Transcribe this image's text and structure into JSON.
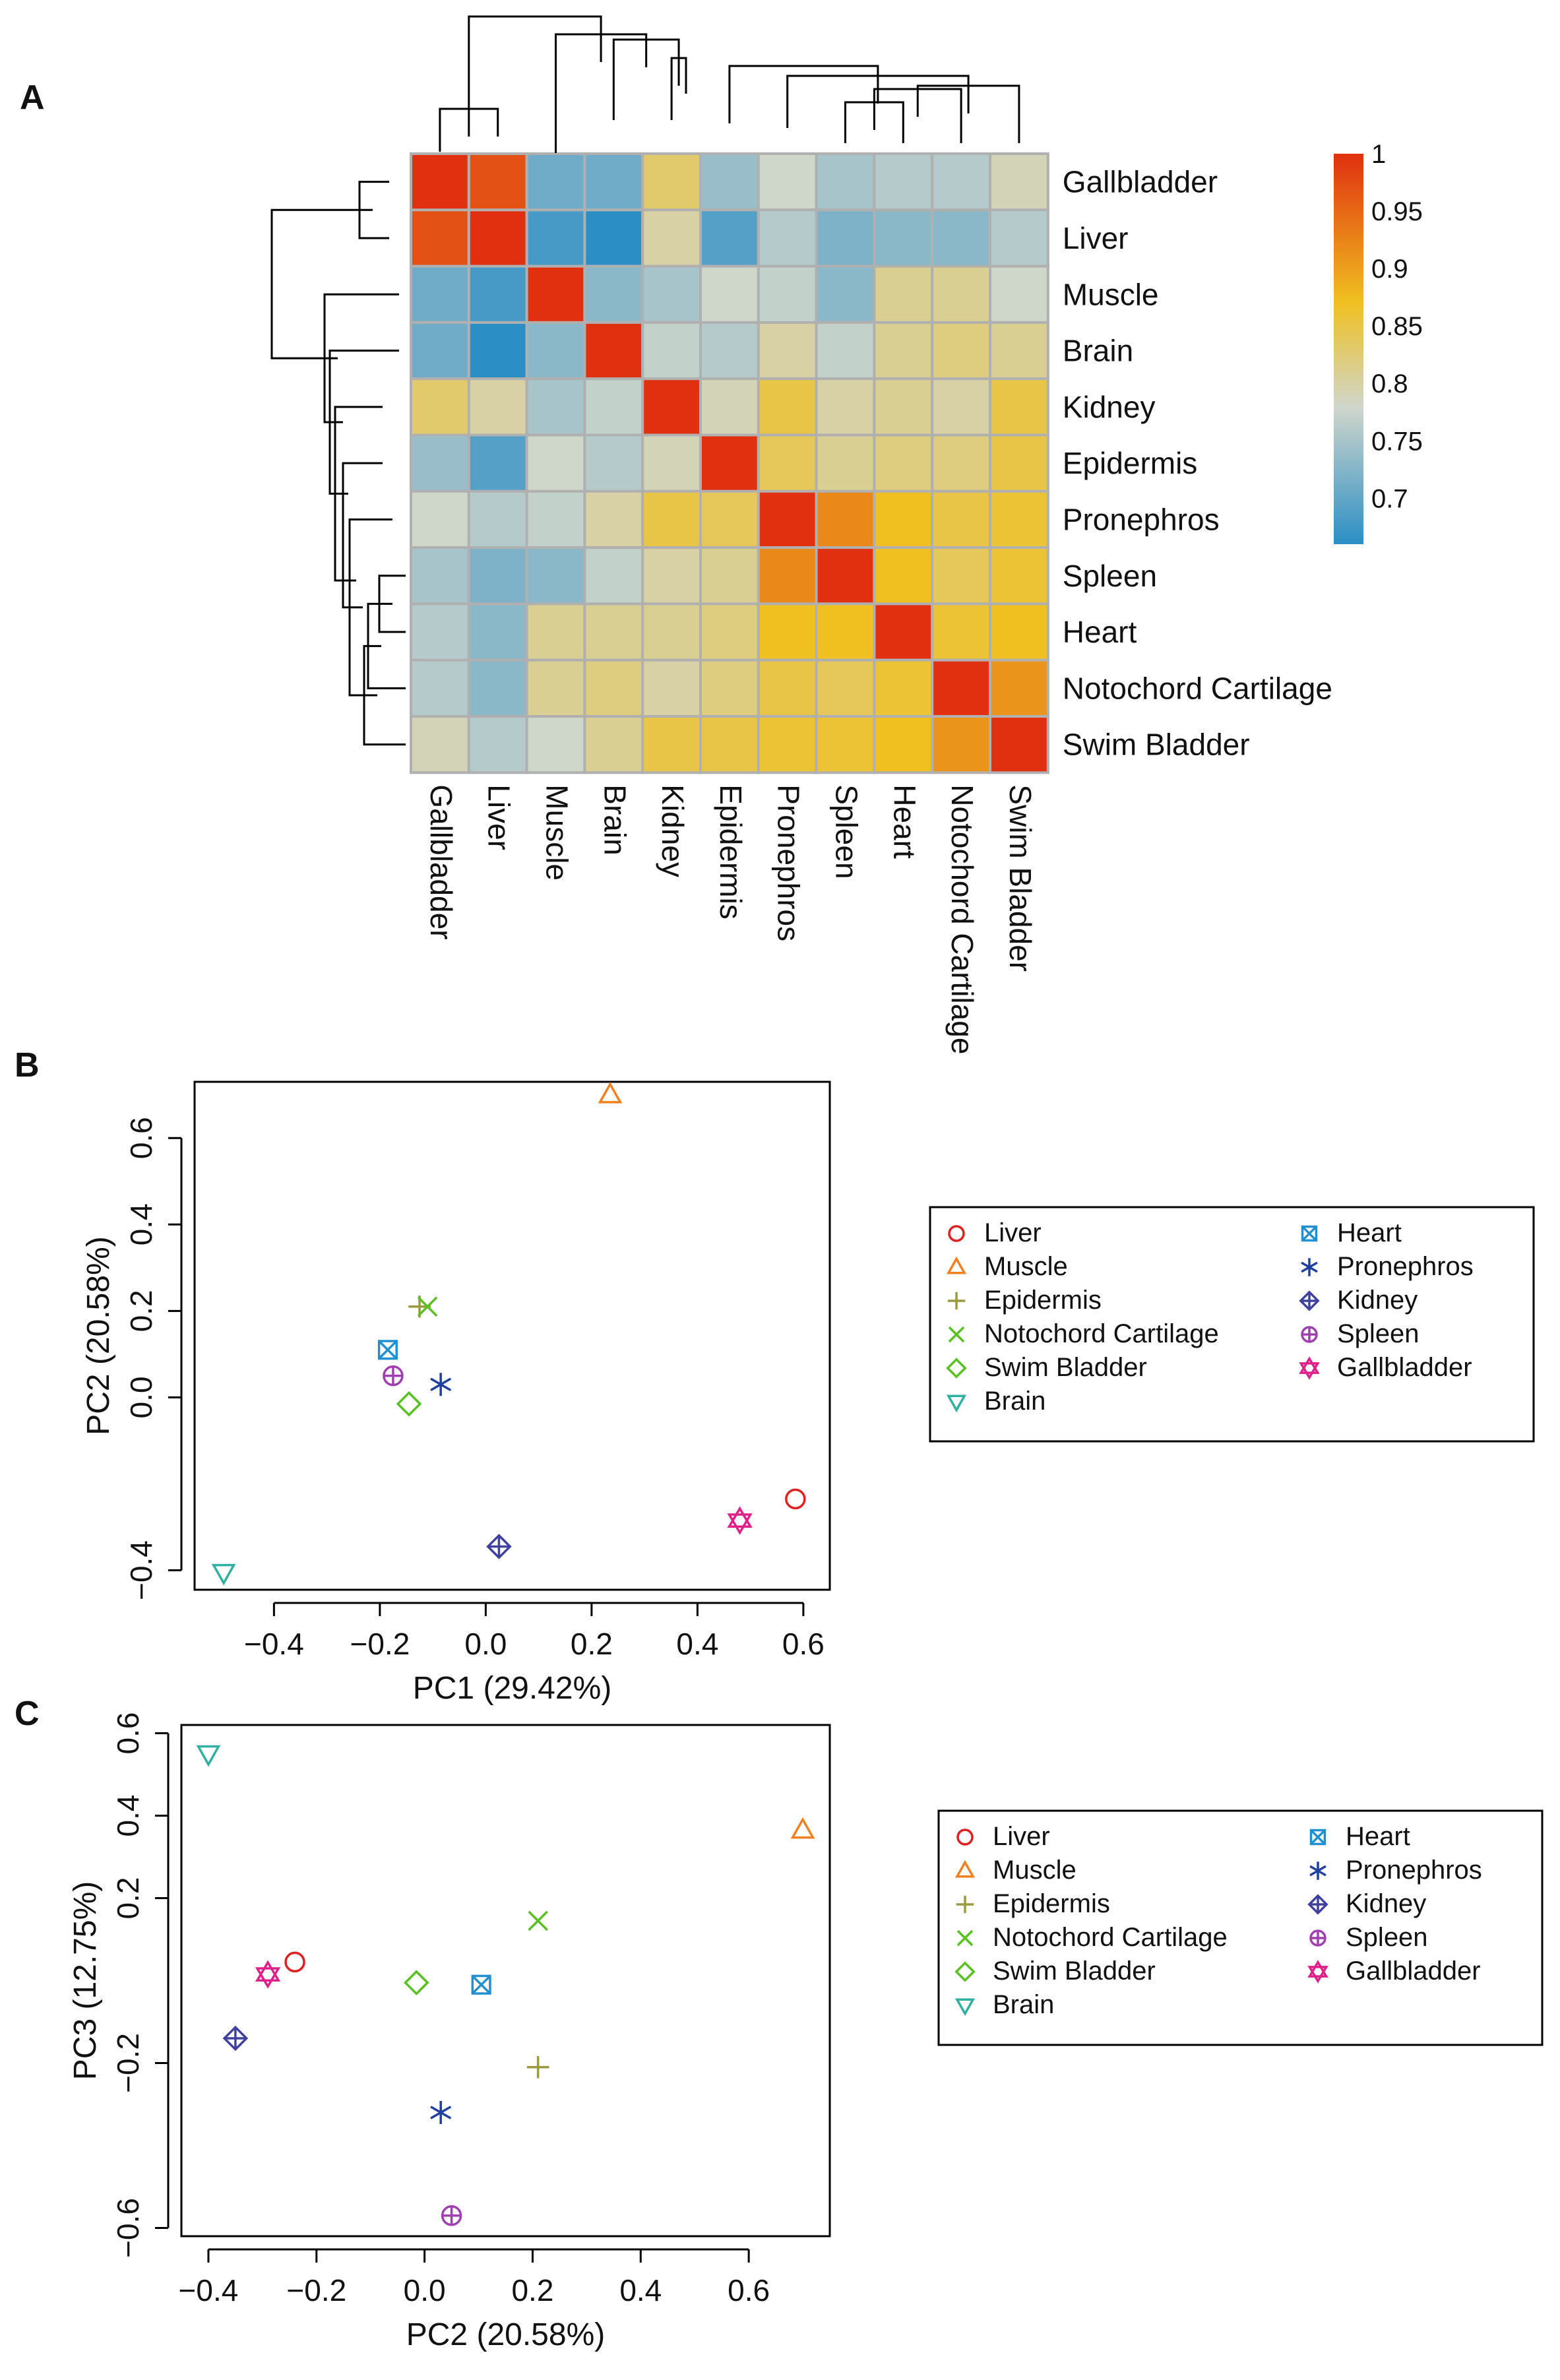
{
  "panel_labels": [
    "A",
    "B",
    "C"
  ],
  "legend_groups": [
    [
      "Liver",
      "Muscle",
      "Epidermis",
      "Notochord Cartilage",
      "Swim Bladder",
      "Brain"
    ],
    [
      "Heart",
      "Pronephros",
      "Kidney",
      "Spleen",
      "Gallbladder"
    ]
  ],
  "colors": {
    "Liver": "#e02020",
    "Muscle": "#f08020",
    "Epidermis": "#9a9a40",
    "Notochord Cartilage": "#58c020",
    "Swim Bladder": "#58c020",
    "Brain": "#30b0a0",
    "Heart": "#2090d0",
    "Pronephros": "#2040a0",
    "Kidney": "#4040a0",
    "Spleen": "#a040b0",
    "Gallbladder": "#e0208a"
  },
  "markers": {
    "Liver": "circle",
    "Muscle": "triangle-up",
    "Epidermis": "plus",
    "Notochord Cartilage": "cross",
    "Swim Bladder": "diamond",
    "Brain": "triangle-down",
    "Heart": "square-cross",
    "Pronephros": "asterisk",
    "Kidney": "diamond-plus",
    "Spleen": "circle-plus",
    "Gallbladder": "star-of-david"
  },
  "chart_data": [
    {
      "type": "heatmap",
      "panel": "A",
      "labels": [
        "Gallbladder",
        "Liver",
        "Muscle",
        "Brain",
        "Kidney",
        "Epidermis",
        "Pronephros",
        "Spleen",
        "Heart",
        "Notochord Cartilage",
        "Swim Bladder"
      ],
      "values": [
        [
          1.0,
          0.97,
          0.71,
          0.71,
          0.83,
          0.74,
          0.78,
          0.75,
          0.76,
          0.76,
          0.79
        ],
        [
          0.97,
          1.0,
          0.68,
          0.66,
          0.8,
          0.69,
          0.76,
          0.72,
          0.73,
          0.73,
          0.76
        ],
        [
          0.71,
          0.68,
          1.0,
          0.73,
          0.75,
          0.78,
          0.77,
          0.73,
          0.81,
          0.81,
          0.78
        ],
        [
          0.71,
          0.66,
          0.73,
          1.0,
          0.77,
          0.76,
          0.8,
          0.77,
          0.81,
          0.82,
          0.81
        ],
        [
          0.83,
          0.8,
          0.75,
          0.77,
          1.0,
          0.79,
          0.85,
          0.8,
          0.81,
          0.8,
          0.85
        ],
        [
          0.74,
          0.69,
          0.78,
          0.76,
          0.79,
          1.0,
          0.84,
          0.81,
          0.82,
          0.82,
          0.85
        ],
        [
          0.78,
          0.76,
          0.77,
          0.8,
          0.85,
          0.84,
          1.0,
          0.92,
          0.87,
          0.85,
          0.86
        ],
        [
          0.75,
          0.72,
          0.73,
          0.77,
          0.8,
          0.81,
          0.92,
          1.0,
          0.87,
          0.84,
          0.86
        ],
        [
          0.76,
          0.73,
          0.81,
          0.81,
          0.81,
          0.82,
          0.87,
          0.87,
          1.0,
          0.86,
          0.87
        ],
        [
          0.76,
          0.73,
          0.81,
          0.82,
          0.8,
          0.82,
          0.85,
          0.84,
          0.86,
          1.0,
          0.91
        ],
        [
          0.79,
          0.76,
          0.78,
          0.81,
          0.85,
          0.85,
          0.86,
          0.86,
          0.87,
          0.91,
          1.0
        ]
      ],
      "colorbar": {
        "range": [
          0.66,
          1.0
        ],
        "ticks": [
          "0.7",
          "0.75",
          "0.8",
          "0.85",
          "0.9",
          "0.95",
          "1"
        ],
        "colors": [
          "#2b8ec4",
          "#cfd6cc",
          "#f0c020",
          "#e03010"
        ]
      }
    },
    {
      "type": "scatter",
      "panel": "B",
      "xlabel": "PC1 (29.42%)",
      "ylabel": "PC2 (20.58%)",
      "xlim": [
        -0.55,
        0.65
      ],
      "ylim": [
        -0.445,
        0.73
      ],
      "xticks": [
        "-0.4",
        "-0.2",
        "0.0",
        "0.2",
        "0.4",
        "0.6"
      ],
      "yticks": [
        "-0.4",
        "0.0",
        "0.2",
        "0.4",
        "0.6"
      ],
      "points": [
        {
          "name": "Muscle",
          "x": 0.235,
          "y": 0.7
        },
        {
          "name": "Epidermis",
          "x": -0.125,
          "y": 0.21
        },
        {
          "name": "Notochord Cartilage",
          "x": -0.11,
          "y": 0.21
        },
        {
          "name": "Heart",
          "x": -0.185,
          "y": 0.11
        },
        {
          "name": "Spleen",
          "x": -0.175,
          "y": 0.05
        },
        {
          "name": "Pronephros",
          "x": -0.085,
          "y": 0.03
        },
        {
          "name": "Swim Bladder",
          "x": -0.145,
          "y": -0.015
        },
        {
          "name": "Liver",
          "x": 0.585,
          "y": -0.235
        },
        {
          "name": "Gallbladder",
          "x": 0.48,
          "y": -0.285
        },
        {
          "name": "Kidney",
          "x": 0.025,
          "y": -0.345
        },
        {
          "name": "Brain",
          "x": -0.495,
          "y": -0.405
        }
      ]
    },
    {
      "type": "scatter",
      "panel": "C",
      "xlabel": "PC2 (20.58%)",
      "ylabel": "PC3 (12.75%)",
      "xlim": [
        -0.45,
        0.75
      ],
      "ylim": [
        -0.62,
        0.62
      ],
      "xticks": [
        "-0.4",
        "-0.2",
        "0.0",
        "0.2",
        "0.4",
        "0.6"
      ],
      "yticks": [
        "-0.6",
        "-0.2",
        "0.2",
        "0.4",
        "0.6"
      ],
      "points": [
        {
          "name": "Brain",
          "x": -0.4,
          "y": 0.55
        },
        {
          "name": "Muscle",
          "x": 0.7,
          "y": 0.365
        },
        {
          "name": "Notochord Cartilage",
          "x": 0.21,
          "y": 0.145
        },
        {
          "name": "Liver",
          "x": -0.24,
          "y": 0.045
        },
        {
          "name": "Gallbladder",
          "x": -0.29,
          "y": 0.015
        },
        {
          "name": "Swim Bladder",
          "x": -0.015,
          "y": -0.005
        },
        {
          "name": "Heart",
          "x": 0.105,
          "y": -0.01
        },
        {
          "name": "Kidney",
          "x": -0.35,
          "y": -0.14
        },
        {
          "name": "Epidermis",
          "x": 0.21,
          "y": -0.21
        },
        {
          "name": "Pronephros",
          "x": 0.03,
          "y": -0.32
        },
        {
          "name": "Spleen",
          "x": 0.05,
          "y": -0.57
        }
      ]
    }
  ]
}
